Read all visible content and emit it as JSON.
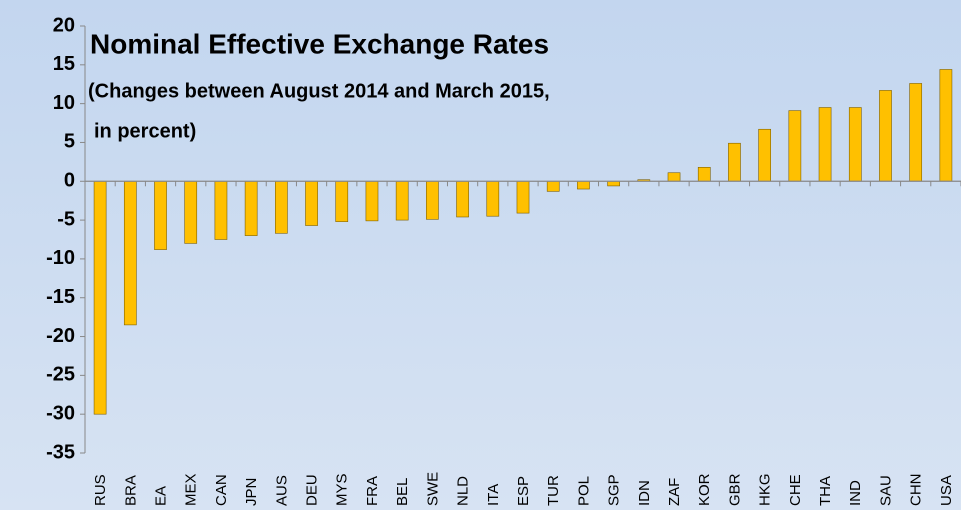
{
  "chart_data": {
    "type": "bar",
    "title": "Nominal Effective Exchange Rates",
    "subtitle": [
      "(Changes between August 2014 and March 2015,",
      "in percent)"
    ],
    "categories": [
      "RUS",
      "BRA",
      "EA",
      "MEX",
      "CAN",
      "JPN",
      "AUS",
      "DEU",
      "MYS",
      "FRA",
      "BEL",
      "SWE",
      "NLD",
      "ITA",
      "ESP",
      "TUR",
      "POL",
      "SGP",
      "IDN",
      "ZAF",
      "KOR",
      "GBR",
      "HKG",
      "CHE",
      "THA",
      "IND",
      "SAU",
      "CHN",
      "USA"
    ],
    "values": [
      -30.0,
      -18.5,
      -8.8,
      -8.0,
      -7.5,
      -7.0,
      -6.7,
      -5.7,
      -5.2,
      -5.1,
      -5.0,
      -4.9,
      -4.6,
      -4.5,
      -4.1,
      -1.3,
      -1.0,
      -0.6,
      0.2,
      1.1,
      1.8,
      4.9,
      6.7,
      9.1,
      9.5,
      9.5,
      11.7,
      12.6,
      14.4
    ],
    "color": "#ffc000",
    "ylim": [
      -35,
      20
    ],
    "yticks": [
      -35,
      -30,
      -25,
      -20,
      -15,
      -10,
      -5,
      0,
      5,
      10,
      15,
      20
    ],
    "grid": false
  }
}
